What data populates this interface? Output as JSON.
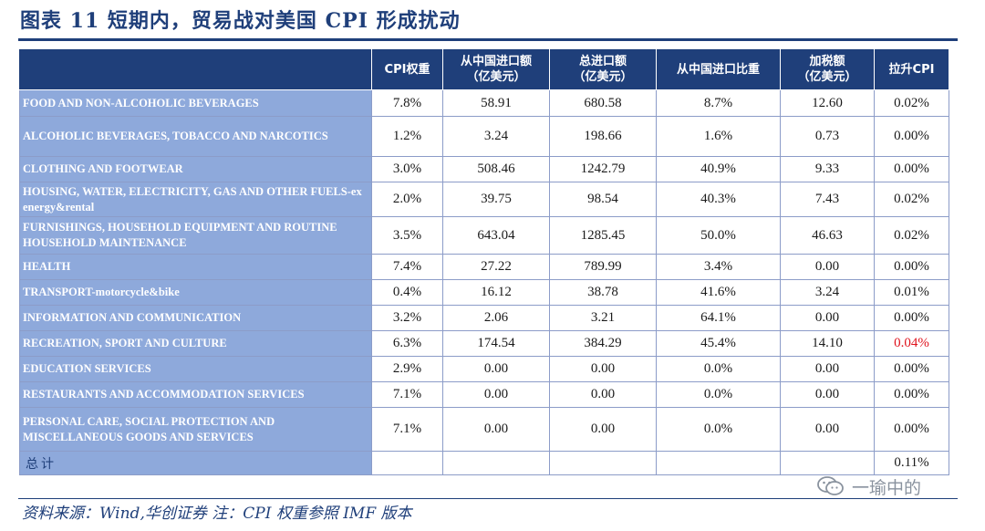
{
  "title": "图表 11   短期内，贸易战对美国 CPI 形成扰动",
  "table": {
    "headers": [
      [
        "CPI权重"
      ],
      [
        "从中国进口额",
        "（亿美元）"
      ],
      [
        "总进口额",
        "（亿美元）"
      ],
      [
        "从中国进口比重"
      ],
      [
        "加税额",
        "（亿美元）"
      ],
      [
        "拉升CPI"
      ]
    ],
    "rows": [
      {
        "category": "FOOD AND NON-ALCOHOLIC BEVERAGES",
        "values": [
          "7.8%",
          "58.91",
          "680.58",
          "8.7%",
          "12.60",
          "0.02%"
        ]
      },
      {
        "category": "ALCOHOLIC BEVERAGES, TOBACCO AND NARCOTICS",
        "values": [
          "1.2%",
          "3.24",
          "198.66",
          "1.6%",
          "0.73",
          "0.00%"
        ]
      },
      {
        "category": "CLOTHING AND FOOTWEAR",
        "values": [
          "3.0%",
          "508.46",
          "1242.79",
          "40.9%",
          "9.33",
          "0.00%"
        ]
      },
      {
        "category": "HOUSING, WATER, ELECTRICITY, GAS AND OTHER FUELS-ex energy&rental",
        "values": [
          "2.0%",
          "39.75",
          "98.54",
          "40.3%",
          "7.43",
          "0.02%"
        ]
      },
      {
        "category": "FURNISHINGS, HOUSEHOLD EQUIPMENT AND ROUTINE HOUSEHOLD MAINTENANCE",
        "values": [
          "3.5%",
          "643.04",
          "1285.45",
          "50.0%",
          "46.63",
          "0.02%"
        ]
      },
      {
        "category": "HEALTH",
        "values": [
          "7.4%",
          "27.22",
          "789.99",
          "3.4%",
          "0.00",
          "0.00%"
        ]
      },
      {
        "category": "TRANSPORT-motorcycle&bike",
        "values": [
          "0.4%",
          "16.12",
          "38.78",
          "41.6%",
          "3.24",
          "0.01%"
        ]
      },
      {
        "category": "INFORMATION AND COMMUNICATION",
        "values": [
          "3.2%",
          "2.06",
          "3.21",
          "64.1%",
          "0.00",
          "0.00%"
        ]
      },
      {
        "category": "RECREATION, SPORT AND CULTURE",
        "values": [
          "6.3%",
          "174.54",
          "384.29",
          "45.4%",
          "14.10",
          "0.04%"
        ]
      },
      {
        "category": "EDUCATION SERVICES",
        "values": [
          "2.9%",
          "0.00",
          "0.00",
          "0.0%",
          "0.00",
          "0.00%"
        ]
      },
      {
        "category": "RESTAURANTS AND ACCOMMODATION SERVICES",
        "values": [
          "7.1%",
          "0.00",
          "0.00",
          "0.0%",
          "0.00",
          "0.00%"
        ]
      },
      {
        "category": "PERSONAL CARE, SOCIAL PROTECTION AND MISCELLANEOUS GOODS AND SERVICES",
        "values": [
          "7.1%",
          "0.00",
          "0.00",
          "0.0%",
          "0.00",
          "0.00%"
        ]
      }
    ],
    "highlight_color": "#e0141e",
    "total_label": "总计",
    "total_value": "0.11%"
  },
  "source": "资料来源：Wind,华创证券 注：CPI 权重参照 IMF 版本",
  "watermark": {
    "icon": "wechat-icon",
    "text": "一瑜中的"
  }
}
